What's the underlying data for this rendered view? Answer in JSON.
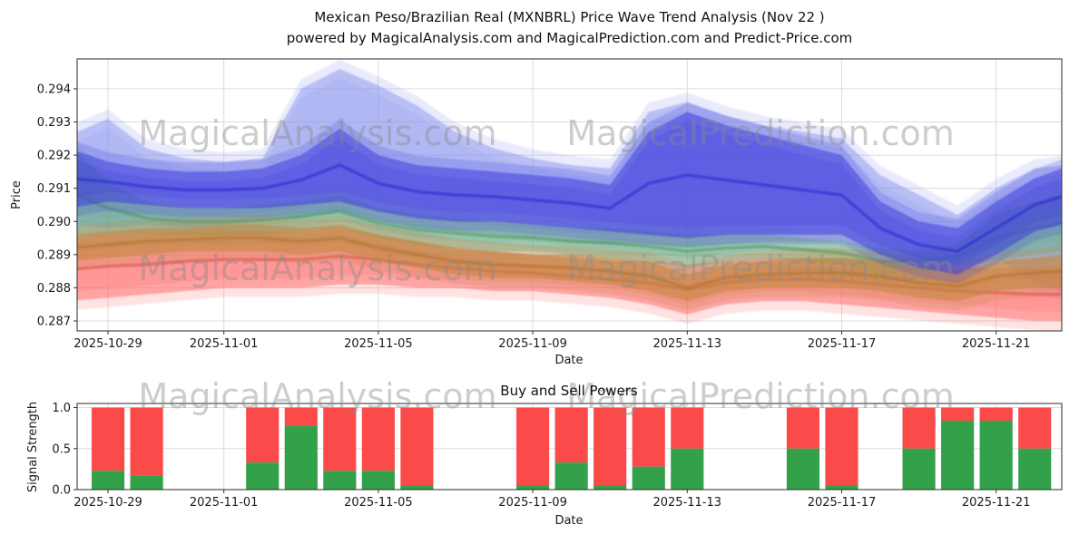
{
  "header": {
    "title_line1": "Mexican Peso/Brazilian Real (MXNBRL) Price Wave Trend Analysis (Nov 22 )",
    "title_line2": "powered by MagicalAnalysis.com and MagicalPrediction.com and Predict-Price.com"
  },
  "watermarks": {
    "analysis": "MagicalAnalysis.com",
    "prediction": "MagicalPrediction.com"
  },
  "chart_data": [
    {
      "type": "area",
      "title": "Mexican Peso/Brazilian Real (MXNBRL) Price Wave Trend Analysis (Nov 22 )",
      "xlabel": "Date",
      "ylabel": "Price",
      "grid": true,
      "x_unit": "days_since_2025-10-28",
      "xlim": [
        0.2,
        25.7
      ],
      "ylim": [
        0.2867,
        0.2949
      ],
      "x_ticks": {
        "values": [
          1,
          4,
          8,
          12,
          16,
          20,
          24
        ],
        "labels": [
          "2025-10-29",
          "2025-11-01",
          "2025-11-05",
          "2025-11-09",
          "2025-11-13",
          "2025-11-17",
          "2025-11-21"
        ]
      },
      "y_ticks": {
        "values": [
          0.287,
          0.288,
          0.289,
          0.29,
          0.291,
          0.292,
          0.293,
          0.294
        ],
        "labels": [
          "0.287",
          "0.288",
          "0.289",
          "0.290",
          "0.291",
          "0.292",
          "0.293",
          "0.294"
        ]
      },
      "bands": [
        {
          "name": "forecast-envelope-light-blue",
          "color": "#8a93ee",
          "core_color": null,
          "opacity": 0.5,
          "points": [
            [
              0,
              0.2899,
              0.2926
            ],
            [
              1,
              0.2898,
              0.2931
            ],
            [
              2,
              0.2899,
              0.2922
            ],
            [
              3,
              0.2898,
              0.2919
            ],
            [
              4,
              0.2899,
              0.2918
            ],
            [
              5,
              0.29,
              0.2919
            ],
            [
              6,
              0.2901,
              0.294
            ],
            [
              7,
              0.2903,
              0.2946
            ],
            [
              8,
              0.29,
              0.2941
            ],
            [
              9,
              0.2898,
              0.2935
            ],
            [
              10,
              0.2897,
              0.2927
            ],
            [
              11,
              0.2896,
              0.2922
            ],
            [
              12,
              0.2895,
              0.2919
            ],
            [
              13,
              0.2894,
              0.2917
            ],
            [
              14,
              0.2893,
              0.2916
            ],
            [
              15,
              0.2893,
              0.2933
            ],
            [
              16,
              0.2892,
              0.2936
            ],
            [
              17,
              0.2893,
              0.2932
            ],
            [
              18,
              0.2894,
              0.2929
            ],
            [
              19,
              0.2894,
              0.2927
            ],
            [
              20,
              0.2894,
              0.2925
            ],
            [
              21,
              0.289,
              0.2914
            ],
            [
              22,
              0.2886,
              0.2908
            ],
            [
              23,
              0.2884,
              0.2902
            ],
            [
              24,
              0.2889,
              0.291
            ],
            [
              25,
              0.2881,
              0.2916
            ],
            [
              25.7,
              0.2879,
              0.2917
            ]
          ]
        },
        {
          "name": "wave-red",
          "color": "#ff6666",
          "core_color": "#d03a3a",
          "opacity": 0.5,
          "points": [
            [
              0,
              0.2876,
              0.2895
            ],
            [
              1,
              0.2877,
              0.2896
            ],
            [
              2,
              0.2878,
              0.2896
            ],
            [
              3,
              0.2879,
              0.2897
            ],
            [
              4,
              0.288,
              0.2897
            ],
            [
              5,
              0.288,
              0.2897
            ],
            [
              6,
              0.288,
              0.2897
            ],
            [
              7,
              0.2881,
              0.2898
            ],
            [
              8,
              0.2881,
              0.2896
            ],
            [
              9,
              0.288,
              0.2894
            ],
            [
              10,
              0.288,
              0.2892
            ],
            [
              11,
              0.2879,
              0.2891
            ],
            [
              12,
              0.2879,
              0.289
            ],
            [
              13,
              0.2878,
              0.2889
            ],
            [
              14,
              0.2877,
              0.2888
            ],
            [
              15,
              0.2875,
              0.2888
            ],
            [
              16,
              0.2872,
              0.2887
            ],
            [
              17,
              0.2875,
              0.2888
            ],
            [
              18,
              0.2876,
              0.2889
            ],
            [
              19,
              0.2876,
              0.2889
            ],
            [
              20,
              0.2875,
              0.2889
            ],
            [
              21,
              0.2874,
              0.2888
            ],
            [
              22,
              0.2873,
              0.2887
            ],
            [
              23,
              0.2872,
              0.2886
            ],
            [
              24,
              0.2871,
              0.2886
            ],
            [
              25,
              0.287,
              0.2886
            ],
            [
              25.7,
              0.287,
              0.2886
            ]
          ]
        },
        {
          "name": "wave-green",
          "color": "#63ab78",
          "core_color": "#3f8f5a",
          "opacity": 0.45,
          "points": [
            [
              0,
              0.2895,
              0.2923
            ],
            [
              1,
              0.2896,
              0.2912
            ],
            [
              2,
              0.2896,
              0.2906
            ],
            [
              3,
              0.2896,
              0.2904
            ],
            [
              4,
              0.2896,
              0.2904
            ],
            [
              5,
              0.2896,
              0.2905
            ],
            [
              6,
              0.2897,
              0.2906
            ],
            [
              7,
              0.2898,
              0.2908
            ],
            [
              8,
              0.2895,
              0.2904
            ],
            [
              9,
              0.2893,
              0.2902
            ],
            [
              10,
              0.2892,
              0.2901
            ],
            [
              11,
              0.2891,
              0.29
            ],
            [
              12,
              0.2891,
              0.2899
            ],
            [
              13,
              0.289,
              0.2898
            ],
            [
              14,
              0.2889,
              0.2898
            ],
            [
              15,
              0.2888,
              0.2897
            ],
            [
              16,
              0.2886,
              0.2896
            ],
            [
              17,
              0.2888,
              0.2896
            ],
            [
              18,
              0.2889,
              0.2896
            ],
            [
              19,
              0.2888,
              0.2895
            ],
            [
              20,
              0.2887,
              0.2894
            ],
            [
              21,
              0.2884,
              0.2892
            ],
            [
              22,
              0.2885,
              0.2891
            ],
            [
              23,
              0.2886,
              0.2893
            ],
            [
              24,
              0.2888,
              0.2902
            ],
            [
              25,
              0.289,
              0.2906
            ],
            [
              25.7,
              0.2891,
              0.2908
            ]
          ]
        },
        {
          "name": "wave-orange",
          "color": "#c08840",
          "core_color": "#b06a28",
          "opacity": 0.6,
          "points": [
            [
              0,
              0.2888,
              0.2896
            ],
            [
              1,
              0.2889,
              0.2897
            ],
            [
              2,
              0.289,
              0.2898
            ],
            [
              3,
              0.2891,
              0.2898
            ],
            [
              4,
              0.2891,
              0.2899
            ],
            [
              5,
              0.2891,
              0.2899
            ],
            [
              6,
              0.289,
              0.2898
            ],
            [
              7,
              0.2891,
              0.2899
            ],
            [
              8,
              0.2888,
              0.2896
            ],
            [
              9,
              0.2886,
              0.2894
            ],
            [
              10,
              0.2884,
              0.2892
            ],
            [
              11,
              0.2883,
              0.2891
            ],
            [
              12,
              0.2883,
              0.289
            ],
            [
              13,
              0.2882,
              0.289
            ],
            [
              14,
              0.2881,
              0.2889
            ],
            [
              15,
              0.2879,
              0.2888
            ],
            [
              16,
              0.2876,
              0.2884
            ],
            [
              17,
              0.2879,
              0.2887
            ],
            [
              18,
              0.288,
              0.2888
            ],
            [
              19,
              0.288,
              0.2889
            ],
            [
              20,
              0.288,
              0.2889
            ],
            [
              21,
              0.2879,
              0.2888
            ],
            [
              22,
              0.2877,
              0.2886
            ],
            [
              23,
              0.2876,
              0.2885
            ],
            [
              24,
              0.2879,
              0.2888
            ],
            [
              25,
              0.288,
              0.2889
            ],
            [
              25.7,
              0.288,
              0.289
            ]
          ]
        },
        {
          "name": "wave-dark-blue",
          "color": "#4040dd",
          "core_color": "#1c1ccf",
          "opacity": 0.55,
          "points": [
            [
              0,
              0.2904,
              0.2922
            ],
            [
              1,
              0.2906,
              0.2918
            ],
            [
              2,
              0.2905,
              0.2916
            ],
            [
              3,
              0.2904,
              0.2915
            ],
            [
              4,
              0.2904,
              0.2915
            ],
            [
              5,
              0.2904,
              0.2916
            ],
            [
              6,
              0.2905,
              0.292
            ],
            [
              7,
              0.2906,
              0.2928
            ],
            [
              8,
              0.2903,
              0.292
            ],
            [
              9,
              0.2901,
              0.2917
            ],
            [
              10,
              0.29,
              0.2916
            ],
            [
              11,
              0.29,
              0.2915
            ],
            [
              12,
              0.2899,
              0.2914
            ],
            [
              13,
              0.2898,
              0.2913
            ],
            [
              14,
              0.2897,
              0.2911
            ],
            [
              15,
              0.2896,
              0.2927
            ],
            [
              16,
              0.2895,
              0.2933
            ],
            [
              17,
              0.2896,
              0.2929
            ],
            [
              18,
              0.2896,
              0.2926
            ],
            [
              19,
              0.2896,
              0.2923
            ],
            [
              20,
              0.2896,
              0.292
            ],
            [
              21,
              0.289,
              0.2906
            ],
            [
              22,
              0.2886,
              0.29
            ],
            [
              23,
              0.2884,
              0.2898
            ],
            [
              24,
              0.289,
              0.2906
            ],
            [
              25,
              0.2897,
              0.2913
            ],
            [
              25.7,
              0.2899,
              0.2916
            ]
          ]
        }
      ]
    },
    {
      "type": "bar",
      "title": "Buy and Sell Powers",
      "xlabel": "Date",
      "ylabel": "Signal Strength",
      "grid": true,
      "stacked": true,
      "xlim": [
        0.2,
        25.7
      ],
      "ylim": [
        0,
        1.05
      ],
      "x_ticks": {
        "values": [
          1,
          4,
          8,
          12,
          16,
          20,
          24
        ],
        "labels": [
          "2025-10-29",
          "2025-11-01",
          "2025-11-05",
          "2025-11-09",
          "2025-11-13",
          "2025-11-17",
          "2025-11-21"
        ]
      },
      "y_ticks": {
        "values": [
          0,
          0.5,
          1
        ],
        "labels": [
          "0.0",
          "0.5",
          "1.0"
        ]
      },
      "bar_width_days": 0.85,
      "series": [
        {
          "name": "Buy",
          "color": "#33a04a"
        },
        {
          "name": "Sell",
          "color": "#fb4a4a"
        }
      ],
      "bars": [
        {
          "date": "2025-10-29",
          "day": 1,
          "buy": 0.23,
          "sell": 0.77
        },
        {
          "date": "2025-10-30",
          "day": 2,
          "buy": 0.17,
          "sell": 0.83
        },
        {
          "date": "2025-11-02",
          "day": 5,
          "buy": 0.33,
          "sell": 0.67
        },
        {
          "date": "2025-11-03",
          "day": 6,
          "buy": 0.78,
          "sell": 0.22
        },
        {
          "date": "2025-11-04",
          "day": 7,
          "buy": 0.23,
          "sell": 0.77
        },
        {
          "date": "2025-11-05",
          "day": 8,
          "buy": 0.23,
          "sell": 0.77
        },
        {
          "date": "2025-11-06",
          "day": 9,
          "buy": 0.05,
          "sell": 0.95
        },
        {
          "date": "2025-11-09",
          "day": 12,
          "buy": 0.05,
          "sell": 0.95
        },
        {
          "date": "2025-11-10",
          "day": 13,
          "buy": 0.33,
          "sell": 0.67
        },
        {
          "date": "2025-11-11",
          "day": 14,
          "buy": 0.05,
          "sell": 0.95
        },
        {
          "date": "2025-11-12",
          "day": 15,
          "buy": 0.28,
          "sell": 0.72
        },
        {
          "date": "2025-11-13",
          "day": 16,
          "buy": 0.5,
          "sell": 0.5
        },
        {
          "date": "2025-11-16",
          "day": 19,
          "buy": 0.5,
          "sell": 0.5
        },
        {
          "date": "2025-11-17",
          "day": 20,
          "buy": 0.05,
          "sell": 0.95
        },
        {
          "date": "2025-11-19",
          "day": 22,
          "buy": 0.5,
          "sell": 0.5
        },
        {
          "date": "2025-11-20",
          "day": 23,
          "buy": 0.84,
          "sell": 0.16
        },
        {
          "date": "2025-11-21",
          "day": 24,
          "buy": 0.84,
          "sell": 0.16
        },
        {
          "date": "2025-11-22",
          "day": 25,
          "buy": 0.5,
          "sell": 0.5
        }
      ]
    }
  ]
}
